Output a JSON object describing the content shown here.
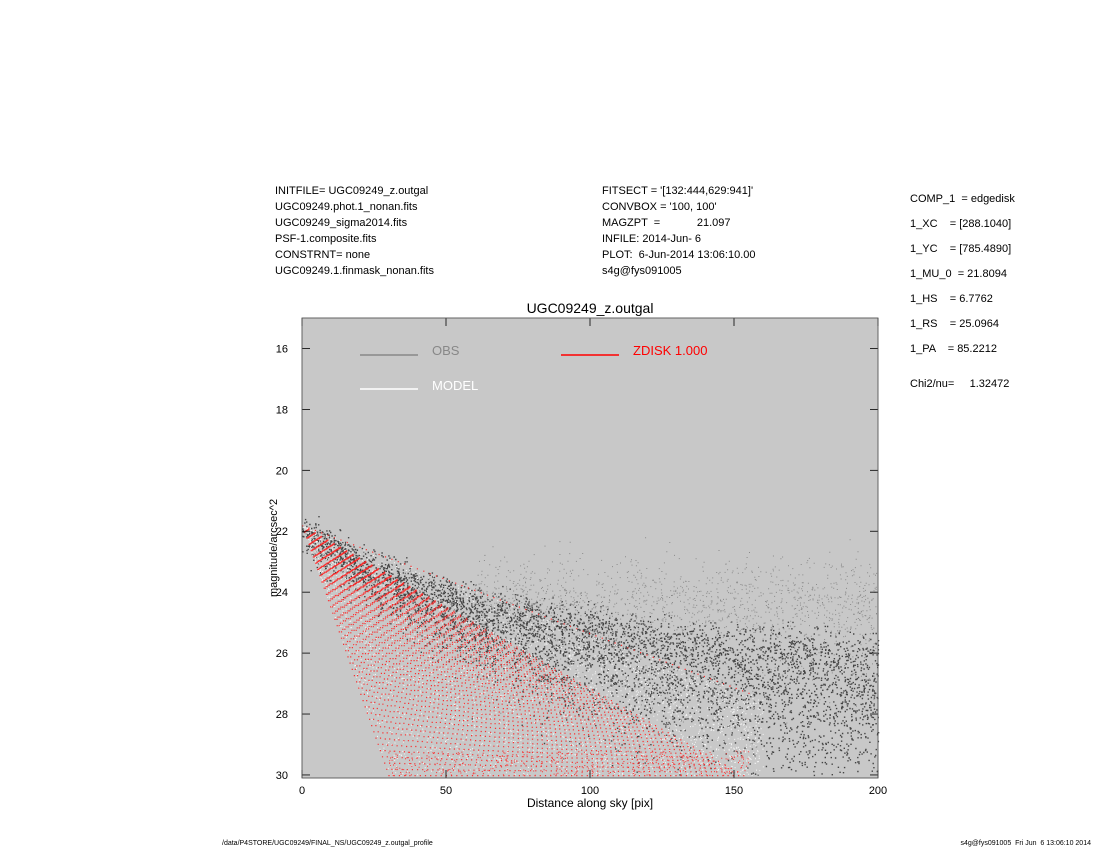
{
  "header": {
    "left": [
      "INITFILE= UGC09249_z.outgal",
      "UGC09249.phot.1_nonan.fits",
      "UGC09249_sigma2014.fits",
      "PSF-1.composite.fits",
      "CONSTRNT= none",
      "UGC09249.1.finmask_nonan.fits"
    ],
    "middle": [
      "FITSECT = '[132:444,629:941]'",
      "CONVBOX = '100, 100'",
      "MAGZPT  =            21.097",
      "INFILE: 2014-Jun- 6",
      "PLOT:  6-Jun-2014 13:06:10.00",
      "s4g@fys091005"
    ]
  },
  "params": {
    "rows": [
      "COMP_1  = edgedisk",
      "1_XC    = [288.1040]",
      "1_YC    = [785.4890]",
      "1_MU_0  = 21.8094",
      "1_HS    = 6.7762",
      "1_RS    = 25.0964",
      "1_PA    = 85.2212"
    ],
    "chi": "Chi2/nu=     1.32472"
  },
  "chart_data": {
    "type": "scatter",
    "title": "UGC09249_z.outgal",
    "xlabel": "Distance along sky [pix]",
    "ylabel": "magnitude/arcsec^2",
    "xlim": [
      0,
      200
    ],
    "ylim": [
      30,
      15
    ],
    "y_inverted": true,
    "xticks": [
      0,
      50,
      100,
      150,
      200
    ],
    "yticks": [
      16,
      18,
      20,
      22,
      24,
      26,
      28,
      30
    ],
    "background": "#c8c8c8",
    "legend": [
      {
        "name": "OBS",
        "color": "#888888"
      },
      {
        "name": "MODEL",
        "color": "#ffffff"
      },
      {
        "name": "ZDISK  1.000",
        "color": "#ff0000"
      }
    ],
    "series": [
      {
        "name": "OBS",
        "color": "#444444",
        "description_points": [
          {
            "x": 0,
            "y": 21.7
          },
          {
            "x": 10,
            "y": 22.2
          },
          {
            "x": 20,
            "y": 22.6
          },
          {
            "x": 40,
            "y": 23.3
          },
          {
            "x": 60,
            "y": 24.0
          },
          {
            "x": 80,
            "y": 24.5
          },
          {
            "x": 100,
            "y": 24.8
          },
          {
            "x": 120,
            "y": 25.0
          },
          {
            "x": 150,
            "y": 25.2
          },
          {
            "x": 180,
            "y": 25.4
          },
          {
            "x": 200,
            "y": 25.6
          }
        ]
      },
      {
        "name": "ZDISK  1.000",
        "color": "#ff0000",
        "envelope_upper": [
          {
            "x": 0,
            "y": 21.8
          },
          {
            "x": 155,
            "y": 27.3
          }
        ],
        "envelope_lower": [
          {
            "x": 0,
            "y": 21.8
          },
          {
            "x": 30,
            "y": 30.0
          }
        ]
      }
    ]
  },
  "footer": {
    "left": "/data/P4STORE/UGC09249/FINAL_NS/UGC09249_z.outgal_profile",
    "right": "s4g@fys091005  Fri Jun  6 13:06:10 2014"
  }
}
